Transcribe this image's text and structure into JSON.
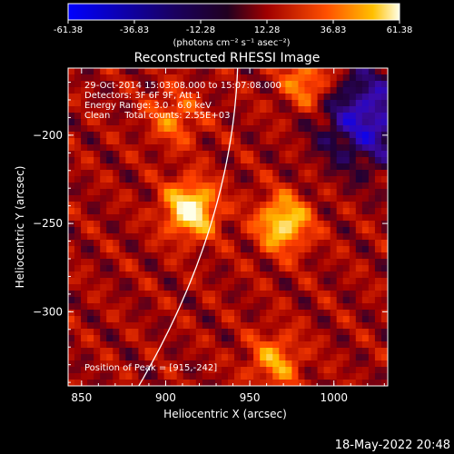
{
  "colorbar": {
    "tick_labels": [
      "-61.38",
      "-36.83",
      "-12.28",
      "12.28",
      "36.83",
      "61.38"
    ],
    "units_text": "(photons cm⁻² s⁻¹ asec⁻²)",
    "range": [
      -61.38,
      61.38
    ]
  },
  "chart_data": {
    "type": "heatmap",
    "title": "Reconstructed RHESSI Image",
    "xlabel": "Heliocentric X (arcsec)",
    "ylabel": "Heliocentric Y (arcsec)",
    "xlim": [
      842,
      1032
    ],
    "ylim": [
      -342,
      -162
    ],
    "x_ticks": [
      850,
      900,
      950,
      1000
    ],
    "y_ticks": [
      -200,
      -250,
      -300
    ],
    "annotations": {
      "time_range": "29-Oct-2014 15:03:08.000 to 15:07:08.000",
      "detectors": "Detectors: 3F 6F 9F, Att 1",
      "energy_range": "Energy Range: 3.0 - 6.0 keV",
      "method_counts": "Clean     Total counts: 2.55E+03",
      "peak": "Position of Peak = [915,-242]"
    },
    "peak_position": [
      915,
      -242
    ],
    "bright_sources": [
      {
        "x": 915,
        "y": -242,
        "relative_intensity": 1.0
      },
      {
        "x": 970,
        "y": -250,
        "relative_intensity": 0.85
      },
      {
        "x": 985,
        "y": -170,
        "relative_intensity": 0.6
      },
      {
        "x": 905,
        "y": -190,
        "relative_intensity": 0.45
      },
      {
        "x": 965,
        "y": -328,
        "relative_intensity": 0.55
      }
    ],
    "colors": [
      "#0000ff",
      "#3b0aa8",
      "#200034",
      "#a00000",
      "#ff4000",
      "#ffc000",
      "#ffffe8"
    ],
    "limb_line_color": "#ffffff",
    "grid": false
  },
  "footer": {
    "date_stamp": "18-May-2022 20:48"
  }
}
